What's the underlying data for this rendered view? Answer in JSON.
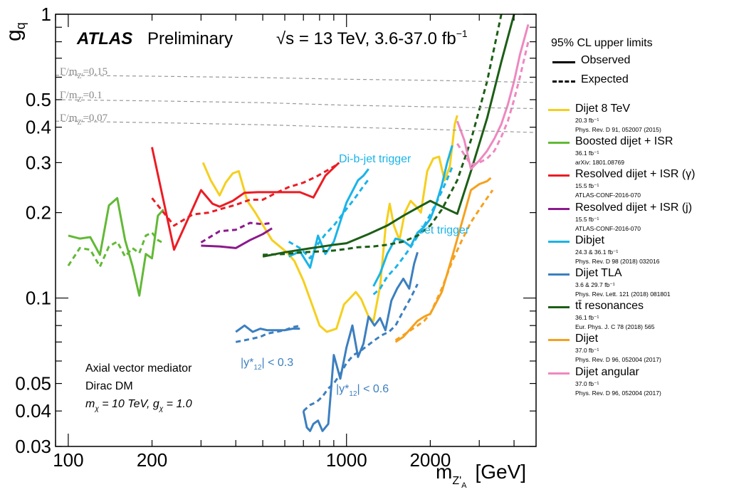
{
  "header": {
    "atlas": "ATLAS",
    "preliminary": "Preliminary",
    "energy": "√s = 13 TeV, 3.6-37.0 fb",
    "energy_sup": "−1"
  },
  "y_axis_title": "g",
  "y_axis_title_sub": "q",
  "x_axis_title": "m",
  "x_axis_title_sub": "Z'",
  "x_axis_title_subsub": "A",
  "x_axis_title_unit": "[GeV]",
  "info_box": {
    "line1": "Axial vector mediator",
    "line2": "Dirac DM",
    "line3": "m",
    "line3_sub": "χ",
    "line3_rest": " = 10 TeV, g",
    "line3_sub2": "χ",
    "line3_rest2": " = 1.0"
  },
  "legend": {
    "title": "95% CL upper limits",
    "observed": "Observed",
    "expected": "Expected",
    "entries": [
      {
        "name": "Dijet 8 TeV",
        "sub1": "20.3 fb⁻¹",
        "sub2": "Phys. Rev. D 91, 052007 (2015)",
        "color": "#f5cf1d"
      },
      {
        "name": "Boosted dijet + ISR",
        "sub1": "36.1 fb⁻¹",
        "sub2": "arXiv: 1801.08769",
        "color": "#62b936"
      },
      {
        "name": "Resolved dijet + ISR (γ)",
        "sub1": "15.5 fb⁻¹",
        "sub2": "ATLAS-CONF-2016-070",
        "color": "#ec1c24"
      },
      {
        "name": "Resolved dijet + ISR (j)",
        "sub1": "15.5 fb⁻¹",
        "sub2": "ATLAS-CONF-2016-070",
        "color": "#8b1a8c"
      },
      {
        "name": "Dibjet",
        "sub1": "24.3 & 36.1 fb⁻¹",
        "sub2": "Phys. Rev. D 98 (2018) 032016",
        "color": "#1ab4e8"
      },
      {
        "name": "Dijet TLA",
        "sub1": "3.6 & 29.7 fb⁻¹",
        "sub2": "Phys. Rev. Lett. 121 (2018) 081801",
        "color": "#3c7fc0"
      },
      {
        "name": "tt̄ resonances",
        "sub1": "36.1 fb⁻¹",
        "sub2": "Eur. Phys. J. C 78 (2018) 565",
        "color": "#1c5e16"
      },
      {
        "name": "Dijet",
        "sub1": "37.0 fb⁻¹",
        "sub2": "Phys. Rev. D 96, 052004 (2017)",
        "color": "#f5a11f"
      },
      {
        "name": "Dijet angular",
        "sub1": "37.0 fb⁻¹",
        "sub2": "Phys. Rev. D 96, 052004 (2017)",
        "color": "#ee88c0"
      }
    ]
  },
  "annotations": {
    "dibjet_trigger": "Di-b-jet trigger",
    "jet_trigger": "Jet trigger",
    "tla_a": "|y*",
    "tla_a_sub": "12",
    "tla_a_rest": "| < 0.3",
    "tla_b": "|y*",
    "tla_b_sub": "12",
    "tla_b_rest": "| < 0.6"
  },
  "width_labels": [
    "Γ/m",
    "Γ/m",
    "Γ/m"
  ],
  "width_label_sub": "Z'",
  "width_values": [
    "=0.15",
    "=0.1",
    "=0.07"
  ],
  "chart_data": {
    "type": "line",
    "x_scale": "log",
    "y_scale": "log",
    "xlim": [
      90,
      4800
    ],
    "ylim": [
      0.03,
      1
    ],
    "x_tick_labels": [
      "100",
      "200",
      "1000",
      "2000"
    ],
    "x_tick_values": [
      100,
      200,
      1000,
      2000
    ],
    "y_tick_labels": [
      "0.03",
      "0.04",
      "0.05",
      "0.1",
      "0.2",
      "0.3",
      "0.4",
      "0.5",
      "1"
    ],
    "y_tick_values": [
      0.03,
      0.04,
      0.05,
      0.1,
      0.2,
      0.3,
      0.4,
      0.5,
      1
    ],
    "series": [
      {
        "name": "Dijet 8 TeV",
        "style": "observed",
        "color": "#f5cf1d",
        "x": [
          305,
          325,
          350,
          368,
          390,
          410,
          440,
          470,
          540,
          610,
          650,
          700,
          760,
          800,
          850,
          920,
          980,
          1030,
          1080,
          1130,
          1200,
          1250,
          1320,
          1380,
          1430,
          1480,
          1550,
          1620,
          1700,
          1780,
          1850,
          1950,
          2050,
          2150,
          2250,
          2350,
          2450,
          2500
        ],
        "y": [
          0.3,
          0.26,
          0.23,
          0.255,
          0.275,
          0.28,
          0.22,
          0.2,
          0.16,
          0.145,
          0.135,
          0.115,
          0.092,
          0.08,
          0.076,
          0.078,
          0.095,
          0.1,
          0.105,
          0.099,
          0.086,
          0.083,
          0.11,
          0.175,
          0.215,
          0.18,
          0.16,
          0.2,
          0.22,
          0.21,
          0.2,
          0.28,
          0.31,
          0.315,
          0.26,
          0.29,
          0.41,
          0.44
        ]
      },
      {
        "name": "Boosted dijet + ISR",
        "style": "observed",
        "color": "#62b936",
        "x": [
          100,
          110,
          120,
          130,
          140,
          150,
          160,
          170,
          180,
          190,
          200,
          210,
          220
        ],
        "y": [
          0.166,
          0.162,
          0.164,
          0.142,
          0.212,
          0.225,
          0.16,
          0.13,
          0.102,
          0.143,
          0.138,
          0.195,
          0.205
        ]
      },
      {
        "name": "Boosted dijet + ISR",
        "style": "expected",
        "color": "#62b936",
        "x": [
          100,
          110,
          120,
          130,
          140,
          150,
          160,
          170,
          180,
          190,
          200,
          210,
          220
        ],
        "y": [
          0.13,
          0.15,
          0.148,
          0.129,
          0.152,
          0.158,
          0.14,
          0.15,
          0.144,
          0.166,
          0.17,
          0.16,
          0.156
        ]
      },
      {
        "name": "Resolved dijet + ISR (γ)",
        "style": "observed",
        "color": "#ec1c24",
        "x": [
          200,
          240,
          300,
          330,
          350,
          390,
          430,
          480,
          530,
          600,
          680,
          760,
          840,
          940
        ],
        "y": [
          0.34,
          0.148,
          0.24,
          0.215,
          0.21,
          0.22,
          0.235,
          0.236,
          0.236,
          0.236,
          0.236,
          0.226,
          0.27,
          0.3
        ]
      },
      {
        "name": "Resolved dijet + ISR (γ)",
        "style": "expected",
        "color": "#ec1c24",
        "x": [
          200,
          240,
          280,
          320,
          360,
          400,
          450,
          500,
          560,
          620,
          700,
          780,
          860,
          940
        ],
        "y": [
          0.225,
          0.18,
          0.197,
          0.2,
          0.207,
          0.213,
          0.222,
          0.222,
          0.235,
          0.246,
          0.255,
          0.268,
          0.283,
          0.298
        ]
      },
      {
        "name": "Resolved dijet + ISR (j)",
        "style": "observed",
        "color": "#8b1a8c",
        "x": [
          300,
          350,
          400,
          450,
          500,
          540
        ],
        "y": [
          0.153,
          0.152,
          0.15,
          0.16,
          0.168,
          0.176
        ]
      },
      {
        "name": "Resolved dijet + ISR (j)",
        "style": "expected",
        "color": "#8b1a8c",
        "x": [
          300,
          350,
          400,
          450,
          500,
          540
        ],
        "y": [
          0.157,
          0.172,
          0.174,
          0.184,
          0.182,
          0.184
        ]
      },
      {
        "name": "Dibjet",
        "style": "observed",
        "color": "#1ab4e8",
        "x": [
          620,
          680,
          740,
          790,
          840,
          900,
          950,
          1000,
          1050,
          1100,
          1150,
          1200
        ],
        "y": [
          0.14,
          0.146,
          0.128,
          0.166,
          0.143,
          0.158,
          0.186,
          0.217,
          0.238,
          0.26,
          0.27,
          0.285
        ]
      },
      {
        "name": "Dibjet",
        "style": "expected",
        "color": "#1ab4e8",
        "x": [
          620,
          680,
          740,
          790,
          840,
          900,
          950,
          1000,
          1050,
          1100,
          1150,
          1200
        ],
        "y": [
          0.158,
          0.15,
          0.138,
          0.155,
          0.168,
          0.18,
          0.193,
          0.206,
          0.219,
          0.233,
          0.248,
          0.262
        ]
      },
      {
        "name": "Dibjet",
        "style": "observed",
        "color": "#1ab4e8",
        "x": [
          1250,
          1320,
          1400,
          1500,
          1600,
          1700,
          1800,
          1900,
          2000,
          2100,
          2200,
          2300,
          2400
        ],
        "y": [
          0.11,
          0.122,
          0.143,
          0.162,
          0.159,
          0.152,
          0.17,
          0.178,
          0.19,
          0.215,
          0.25,
          0.3,
          0.345
        ]
      },
      {
        "name": "Dibjet",
        "style": "expected",
        "color": "#1ab4e8",
        "x": [
          1250,
          1320,
          1400,
          1500,
          1600,
          1700,
          1800,
          1900,
          2000,
          2100,
          2200,
          2300,
          2400
        ],
        "y": [
          0.103,
          0.108,
          0.119,
          0.128,
          0.139,
          0.151,
          0.165,
          0.18,
          0.197,
          0.216,
          0.238,
          0.262,
          0.29
        ]
      },
      {
        "name": "Dijet TLA",
        "style": "observed",
        "color": "#3c7fc0",
        "x": [
          400,
          430,
          460,
          490,
          520,
          560,
          600,
          640,
          680
        ],
        "y": [
          0.076,
          0.08,
          0.076,
          0.078,
          0.077,
          0.077,
          0.077,
          0.078,
          0.078
        ]
      },
      {
        "name": "Dijet TLA",
        "style": "expected",
        "color": "#3c7fc0",
        "x": [
          400,
          430,
          460,
          490,
          520,
          560,
          600,
          640,
          690
        ],
        "y": [
          0.07,
          0.071,
          0.072,
          0.073,
          0.075,
          0.076,
          0.077,
          0.079,
          0.08
        ]
      },
      {
        "name": "Dijet TLA",
        "style": "observed",
        "color": "#3c7fc0",
        "x": [
          700,
          720,
          740,
          760,
          790,
          820,
          860,
          900,
          950,
          1000,
          1050,
          1100,
          1150,
          1200,
          1260,
          1320,
          1380,
          1450,
          1520,
          1600,
          1680,
          1750,
          1800
        ],
        "y": [
          0.04,
          0.035,
          0.034,
          0.036,
          0.037,
          0.034,
          0.036,
          0.063,
          0.052,
          0.067,
          0.08,
          0.062,
          0.069,
          0.086,
          0.08,
          0.085,
          0.077,
          0.098,
          0.108,
          0.117,
          0.108,
          0.132,
          0.145
        ]
      },
      {
        "name": "Dijet TLA",
        "style": "expected",
        "color": "#3c7fc0",
        "x": [
          700,
          740,
          780,
          820,
          860,
          900,
          950,
          1000,
          1060,
          1120,
          1190,
          1260,
          1340,
          1420,
          1500,
          1600,
          1700,
          1800
        ],
        "y": [
          0.04,
          0.042,
          0.043,
          0.045,
          0.048,
          0.05,
          0.054,
          0.059,
          0.063,
          0.065,
          0.068,
          0.071,
          0.074,
          0.076,
          0.08,
          0.09,
          0.1,
          0.112
        ]
      },
      {
        "name": "tt̄ resonances",
        "style": "observed",
        "color": "#1c5e16",
        "x": [
          500,
          600,
          750,
          900,
          1000,
          1200,
          1400,
          1600,
          1800,
          2000,
          2200,
          2500,
          2800,
          3200,
          3600,
          4000
        ],
        "y": [
          0.14,
          0.145,
          0.15,
          0.154,
          0.156,
          0.168,
          0.18,
          0.195,
          0.208,
          0.22,
          0.21,
          0.198,
          0.28,
          0.43,
          0.68,
          1.0
        ]
      },
      {
        "name": "tt̄ resonances",
        "style": "expected",
        "color": "#1c5e16",
        "x": [
          500,
          600,
          700,
          800,
          900,
          1000,
          1100,
          1250,
          1400,
          1600,
          1800,
          2000,
          2200,
          2500,
          2800,
          3200,
          3600
        ],
        "y": [
          0.142,
          0.143,
          0.145,
          0.146,
          0.147,
          0.149,
          0.151,
          0.152,
          0.154,
          0.158,
          0.166,
          0.18,
          0.205,
          0.26,
          0.36,
          0.58,
          1.0
        ]
      },
      {
        "name": "Dijet",
        "style": "observed",
        "color": "#f5a11f",
        "x": [
          1500,
          1600,
          1700,
          1800,
          1900,
          2000,
          2200,
          2400,
          2600,
          2800,
          3000,
          3200,
          3300
        ],
        "y": [
          0.07,
          0.073,
          0.078,
          0.083,
          0.086,
          0.088,
          0.105,
          0.14,
          0.185,
          0.24,
          0.252,
          0.258,
          0.265
        ]
      },
      {
        "name": "Dijet",
        "style": "expected",
        "color": "#f5a11f",
        "x": [
          1500,
          1600,
          1700,
          1800,
          1900,
          2000,
          2200,
          2400,
          2600,
          2800,
          3000,
          3200,
          3350
        ],
        "y": [
          0.071,
          0.074,
          0.077,
          0.08,
          0.083,
          0.088,
          0.108,
          0.135,
          0.16,
          0.185,
          0.205,
          0.225,
          0.24
        ]
      },
      {
        "name": "Dijet angular",
        "style": "observed",
        "color": "#ee88c0",
        "x": [
          2500,
          2650,
          2800,
          3000,
          3200,
          3400,
          3600,
          3800,
          4000,
          4200,
          4500
        ],
        "y": [
          0.42,
          0.36,
          0.285,
          0.305,
          0.33,
          0.365,
          0.41,
          0.48,
          0.58,
          0.72,
          0.92
        ]
      },
      {
        "name": "Dijet angular",
        "style": "expected",
        "color": "#ee88c0",
        "x": [
          2500,
          2650,
          2800,
          3000,
          3200,
          3400,
          3600,
          3800,
          4000,
          4200,
          4500
        ],
        "y": [
          0.35,
          0.32,
          0.295,
          0.3,
          0.31,
          0.33,
          0.37,
          0.42,
          0.5,
          0.6,
          0.8
        ]
      },
      {
        "name": "Γ/m = 0.15",
        "style": "width",
        "color": "#999999",
        "x": [
          90,
          200,
          500,
          1000,
          2000,
          4800
        ],
        "y": [
          0.61,
          0.605,
          0.598,
          0.59,
          0.585,
          0.575
        ]
      },
      {
        "name": "Γ/m = 0.1",
        "style": "width",
        "color": "#999999",
        "x": [
          90,
          200,
          500,
          1000,
          2000,
          4800
        ],
        "y": [
          0.5,
          0.495,
          0.488,
          0.478,
          0.472,
          0.465
        ]
      },
      {
        "name": "Γ/m = 0.07",
        "style": "width",
        "color": "#999999",
        "x": [
          90,
          200,
          500,
          1000,
          2000,
          4800
        ],
        "y": [
          0.42,
          0.415,
          0.408,
          0.4,
          0.393,
          0.383
        ]
      }
    ]
  }
}
